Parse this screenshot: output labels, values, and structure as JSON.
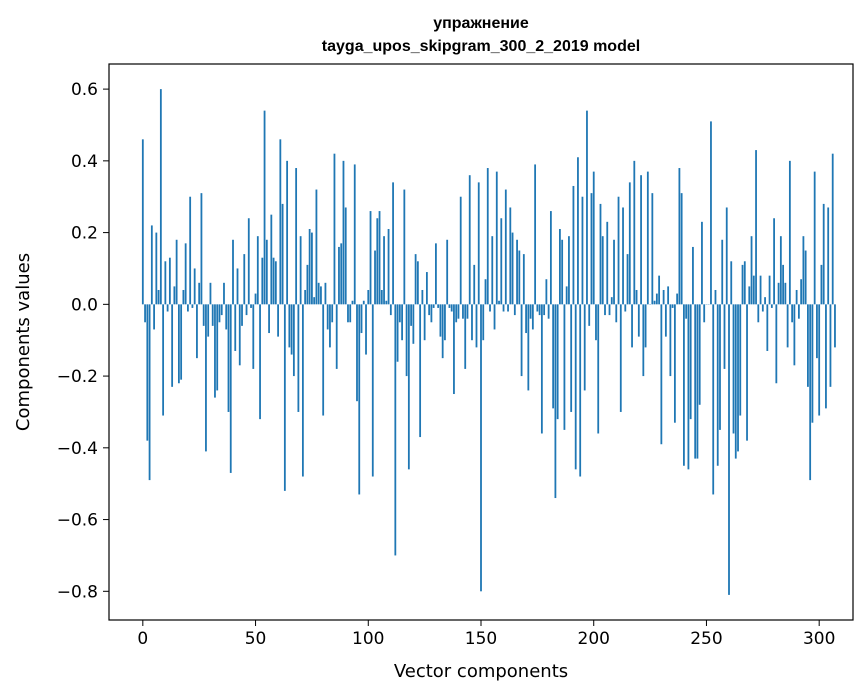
{
  "chart_data": {
    "type": "bar",
    "title_line1": "упражнение",
    "title_line2": "tayga_upos_skipgram_300_2_2019 model",
    "xlabel": "Vector components",
    "ylabel": "Components values",
    "xlim": [
      -15,
      315
    ],
    "ylim": [
      -0.88,
      0.67
    ],
    "xticks": [
      0,
      50,
      100,
      150,
      200,
      250,
      300
    ],
    "xtick_labels": [
      "0",
      "50",
      "100",
      "150",
      "200",
      "250",
      "300"
    ],
    "yticks": [
      0.6,
      0.4,
      0.2,
      0.0,
      -0.2,
      -0.4,
      -0.6,
      -0.8
    ],
    "ytick_labels": [
      "0.6",
      "0.4",
      "0.2",
      "0.0",
      "−0.2",
      "−0.4",
      "−0.6",
      "−0.8"
    ],
    "bar_color": "#1f77b4",
    "values": [
      0.46,
      -0.05,
      -0.38,
      -0.49,
      0.22,
      -0.07,
      0.2,
      0.04,
      0.6,
      -0.31,
      0.12,
      -0.02,
      0.13,
      -0.23,
      0.05,
      0.18,
      -0.22,
      -0.21,
      0.04,
      0.17,
      -0.02,
      0.3,
      -0.01,
      0.1,
      -0.15,
      0.06,
      0.31,
      -0.06,
      -0.41,
      -0.09,
      0.06,
      -0.06,
      -0.26,
      -0.24,
      -0.05,
      -0.03,
      0.06,
      -0.07,
      -0.3,
      -0.47,
      0.18,
      -0.13,
      0.1,
      -0.17,
      -0.06,
      0.14,
      -0.03,
      0.24,
      -0.01,
      -0.18,
      0.03,
      0.19,
      -0.32,
      0.13,
      0.54,
      0.18,
      -0.08,
      0.25,
      0.13,
      0.12,
      -0.09,
      0.46,
      0.28,
      -0.52,
      0.4,
      -0.12,
      -0.14,
      -0.2,
      0.38,
      -0.3,
      0.19,
      -0.48,
      0.04,
      0.11,
      0.21,
      0.2,
      0.02,
      0.32,
      0.06,
      0.05,
      -0.31,
      0.06,
      -0.07,
      -0.12,
      -0.05,
      0.42,
      -0.18,
      0.16,
      0.17,
      0.4,
      0.27,
      -0.05,
      -0.05,
      0.01,
      0.39,
      -0.27,
      -0.53,
      -0.08,
      0.01,
      -0.14,
      0.04,
      0.26,
      -0.48,
      0.15,
      0.24,
      0.26,
      0.04,
      0.19,
      0.01,
      0.21,
      -0.03,
      0.34,
      -0.7,
      -0.16,
      -0.05,
      -0.1,
      0.32,
      -0.2,
      -0.46,
      -0.06,
      -0.11,
      0.14,
      0.12,
      -0.37,
      0.04,
      -0.1,
      0.09,
      -0.03,
      -0.05,
      -0.01,
      0.17,
      -0.01,
      -0.09,
      -0.15,
      -0.1,
      0.18,
      -0.01,
      -0.02,
      -0.25,
      -0.05,
      -0.04,
      0.3,
      -0.04,
      -0.18,
      -0.04,
      0.36,
      -0.1,
      0.11,
      -0.12,
      0.34,
      -0.8,
      -0.1,
      0.07,
      0.38,
      -0.02,
      0.19,
      -0.07,
      0.37,
      0.01,
      0.24,
      -0.02,
      0.32,
      -0.02,
      0.27,
      0.2,
      -0.03,
      0.18,
      0.15,
      -0.2,
      0.14,
      -0.08,
      -0.24,
      -0.04,
      -0.07,
      0.39,
      -0.02,
      -0.03,
      -0.36,
      -0.03,
      0.07,
      -0.04,
      0.26,
      -0.29,
      -0.54,
      -0.32,
      0.21,
      0.18,
      -0.35,
      0.05,
      0.19,
      -0.3,
      0.33,
      -0.46,
      0.41,
      -0.48,
      0.3,
      -0.24,
      0.54,
      -0.06,
      0.31,
      0.37,
      -0.1,
      -0.36,
      0.28,
      0.19,
      -0.03,
      0.23,
      -0.03,
      0.02,
      0.18,
      -0.05,
      0.3,
      -0.3,
      0.27,
      -0.02,
      0.14,
      0.34,
      -0.12,
      0.4,
      0.04,
      -0.09,
      0.36,
      -0.2,
      -0.12,
      0.37,
      0.0,
      0.31,
      0.01,
      0.03,
      0.08,
      -0.39,
      0.04,
      -0.09,
      0.05,
      -0.2,
      -0.01,
      -0.33,
      0.03,
      0.38,
      0.31,
      -0.45,
      -0.04,
      -0.46,
      -0.32,
      0.16,
      -0.43,
      -0.43,
      -0.28,
      0.23,
      -0.05,
      0.0,
      0.0,
      0.51,
      -0.53,
      0.04,
      -0.45,
      -0.35,
      0.18,
      -0.18,
      0.27,
      -0.81,
      0.12,
      -0.36,
      -0.43,
      -0.41,
      -0.31,
      0.11,
      0.12,
      -0.38,
      0.05,
      0.19,
      0.08,
      0.43,
      -0.05,
      0.08,
      -0.02,
      0.02,
      -0.13,
      0.08,
      -0.01,
      0.24,
      -0.22,
      0.06,
      0.19,
      0.11,
      0.06,
      -0.12,
      0.4,
      -0.05,
      -0.17,
      0.04,
      -0.04,
      0.07,
      0.19,
      0.15,
      -0.23,
      -0.49,
      -0.33,
      0.37,
      -0.15,
      -0.31,
      0.11,
      0.28,
      -0.29,
      0.27,
      -0.23,
      0.42,
      -0.12
    ]
  }
}
